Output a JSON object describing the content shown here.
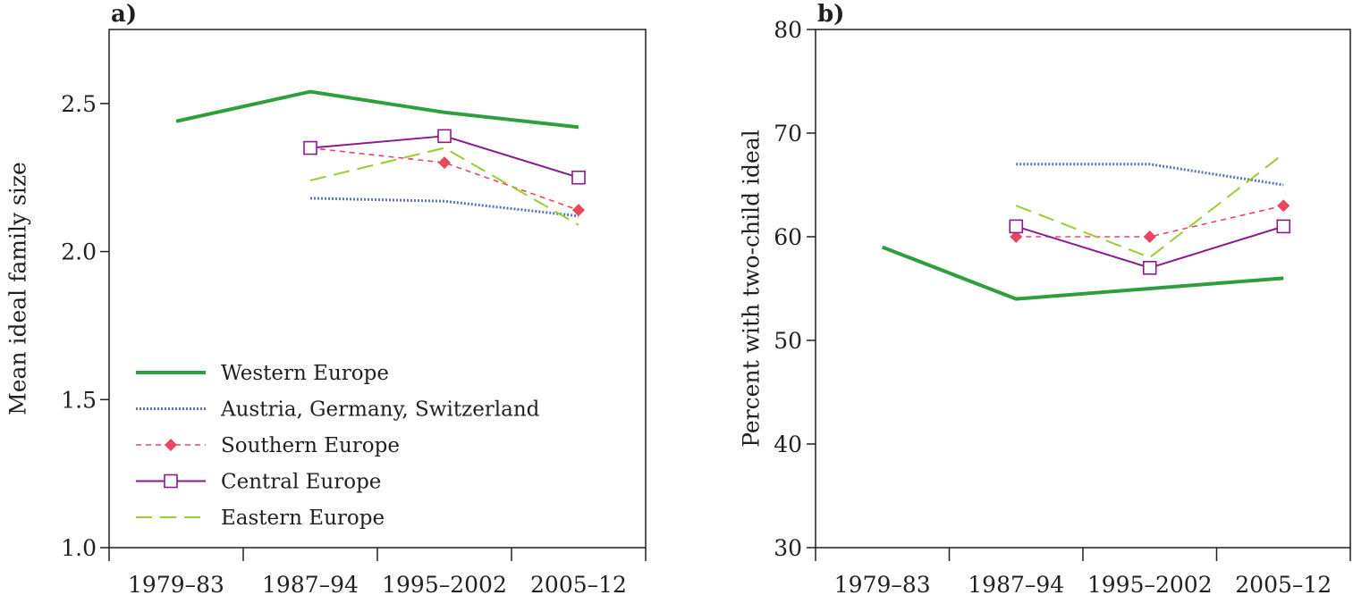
{
  "chart_data": [
    {
      "type": "line",
      "panel_label": "a)",
      "title": "",
      "xlabel": "",
      "ylabel": "Mean ideal family size",
      "categories": [
        "1979–83",
        "1987–94",
        "1995–2002",
        "2005–12"
      ],
      "ylim": [
        1.0,
        2.75
      ],
      "yticks": [
        "1.0",
        "1.5",
        "2.0",
        "2.5"
      ],
      "grid": false,
      "legend_position": "bottom-left",
      "series": [
        {
          "name": "Western Europe",
          "values": [
            2.44,
            2.54,
            2.47,
            2.42
          ]
        },
        {
          "name": "Austria, Germany, Switzerland",
          "values": [
            null,
            2.18,
            2.17,
            2.12
          ]
        },
        {
          "name": "Southern Europe",
          "values": [
            null,
            2.35,
            2.3,
            2.14
          ]
        },
        {
          "name": "Central Europe",
          "values": [
            null,
            2.35,
            2.39,
            2.25
          ]
        },
        {
          "name": "Eastern Europe",
          "values": [
            null,
            2.24,
            2.35,
            2.09
          ]
        }
      ]
    },
    {
      "type": "line",
      "panel_label": "b)",
      "title": "",
      "xlabel": "",
      "ylabel": "Percent with two-child ideal",
      "categories": [
        "1979–83",
        "1987–94",
        "1995–2002",
        "2005–12"
      ],
      "ylim": [
        30,
        80
      ],
      "yticks": [
        "30",
        "40",
        "50",
        "60",
        "70",
        "80"
      ],
      "grid": false,
      "legend_position": "none",
      "series": [
        {
          "name": "Western Europe",
          "values": [
            59,
            54,
            55,
            56
          ]
        },
        {
          "name": "Austria, Germany, Switzerland",
          "values": [
            null,
            67,
            67,
            65
          ]
        },
        {
          "name": "Southern Europe",
          "values": [
            null,
            60,
            60,
            63
          ]
        },
        {
          "name": "Central Europe",
          "values": [
            null,
            61,
            57,
            61
          ]
        },
        {
          "name": "Eastern Europe",
          "values": [
            null,
            63,
            58,
            68
          ]
        }
      ]
    }
  ],
  "series_styles": [
    {
      "color": "#2e9e3e",
      "dash": "",
      "width": 4,
      "marker": "none"
    },
    {
      "color": "#5b74b5",
      "dash": "2 2",
      "width": 3,
      "marker": "none"
    },
    {
      "color": "#e8475f",
      "dash": "6 5",
      "width": 1.6,
      "marker": "diamond"
    },
    {
      "color": "#8b1a8b",
      "dash": "",
      "width": 2,
      "marker": "square"
    },
    {
      "color": "#9acd32",
      "dash": "18 9",
      "width": 2,
      "marker": "none"
    }
  ]
}
